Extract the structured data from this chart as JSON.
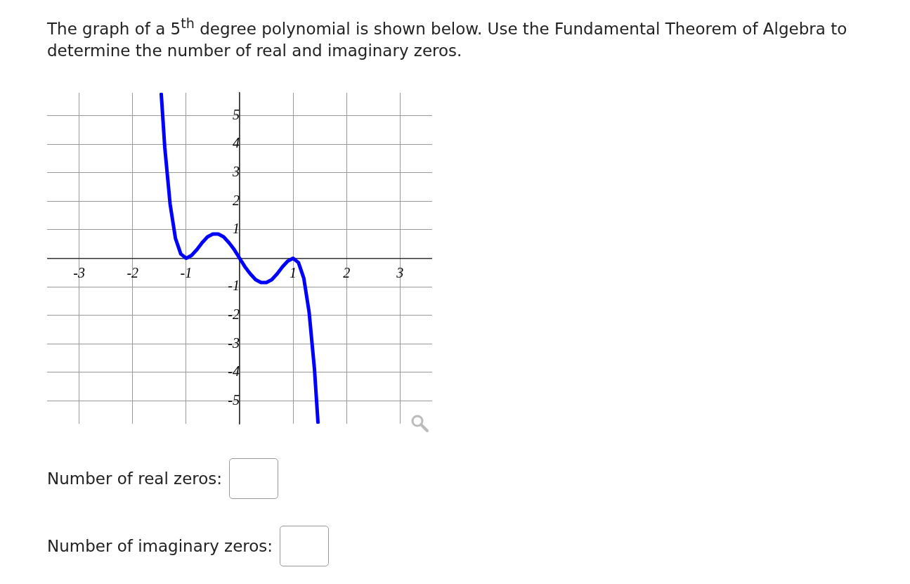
{
  "chart_data": {
    "type": "line",
    "title": "The graph of a 5$^{th}$ degree polynomial is shown below. Use the Fundamental Theorem of Algebra to determine the number of real and imaginary zeros.",
    "x": [
      -1.465,
      -1.4,
      -1.3,
      -1.2,
      -1.1,
      -1,
      -0.9,
      -0.8,
      -0.7,
      -0.6,
      -0.5,
      -0.4,
      -0.3,
      -0.2,
      -0.1,
      0,
      0.1,
      0.2,
      0.3,
      0.4,
      0.5,
      0.6,
      0.7,
      0.8,
      0.9,
      1,
      1.1,
      1.2,
      1.3,
      1.4,
      1.465
    ],
    "values": [
      5.75,
      3.9,
      1.9,
      0.7,
      0.15,
      0,
      0.1,
      0.3,
      0.55,
      0.75,
      0.85,
      0.85,
      0.75,
      0.55,
      0.3,
      0,
      -0.3,
      -0.55,
      -0.75,
      -0.85,
      -0.85,
      -0.75,
      -0.55,
      -0.3,
      -0.1,
      0,
      -0.15,
      -0.7,
      -1.9,
      -3.9,
      -5.75
    ],
    "color": "#0000ff",
    "marker": "none",
    "line_style": "solid",
    "grid": true,
    "xlim": [
      -3.6,
      3.6
    ],
    "ylim": [
      -5.8,
      5.8
    ],
    "xticks": [
      -3,
      -2,
      -1,
      {
        "value": 0,
        "label": null
      },
      1,
      2,
      3
    ],
    "yticks": [
      -5,
      -4,
      -3,
      -2,
      -1,
      {
        "value": 0,
        "label": null
      },
      1,
      2,
      3,
      4,
      5
    ],
    "annotations": [
      "Number of real zeros:",
      "Number of imaginary zeros:"
    ]
  }
}
